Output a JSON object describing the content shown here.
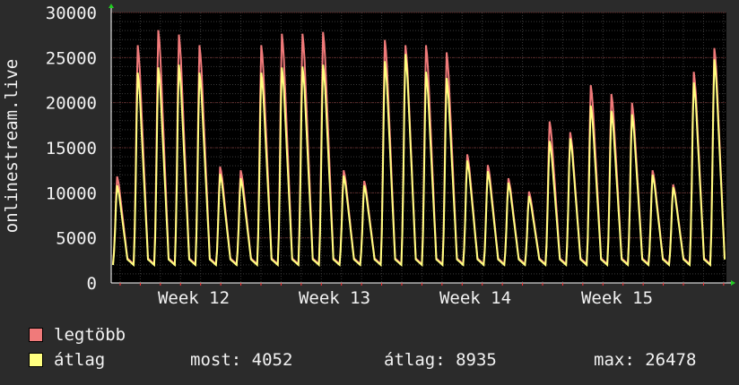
{
  "chart_data": {
    "type": "line",
    "ylabel": "onlinestream.live",
    "ylim": [
      0,
      30000
    ],
    "yticks": [
      0,
      5000,
      10000,
      15000,
      20000,
      25000,
      30000
    ],
    "xticks": [
      "Week 12",
      "Week 13",
      "Week 14",
      "Week 15"
    ],
    "grid": true,
    "series": [
      {
        "name": "legtöbb",
        "color": "#f07a7a",
        "peaks": [
          12000,
          26800,
          28500,
          28000,
          26800,
          13100,
          12700,
          26800,
          28100,
          28100,
          28300,
          12700,
          11500,
          27400,
          26800,
          26800,
          26000,
          14500,
          13300,
          11800,
          10300,
          18200,
          17000,
          22300,
          21300,
          20300,
          12700,
          11100,
          23800,
          26478
        ]
      },
      {
        "name": "átlag",
        "color": "#ffff80",
        "peaks": [
          11000,
          23700,
          24300,
          24600,
          23700,
          12300,
          11800,
          23700,
          24300,
          24400,
          24600,
          12100,
          11000,
          25000,
          25800,
          23800,
          23100,
          13800,
          12600,
          11300,
          9800,
          16000,
          16300,
          20000,
          19400,
          19000,
          12200,
          10800,
          22600,
          25200
        ]
      }
    ]
  },
  "legend": [
    {
      "label": "legtöbb",
      "color": "#f07a7a"
    },
    {
      "label": "átlag",
      "color": "#ffff80"
    }
  ],
  "stats": {
    "now": "most: 4052",
    "avg": "átlag: 8935",
    "max": "max: 26478"
  }
}
